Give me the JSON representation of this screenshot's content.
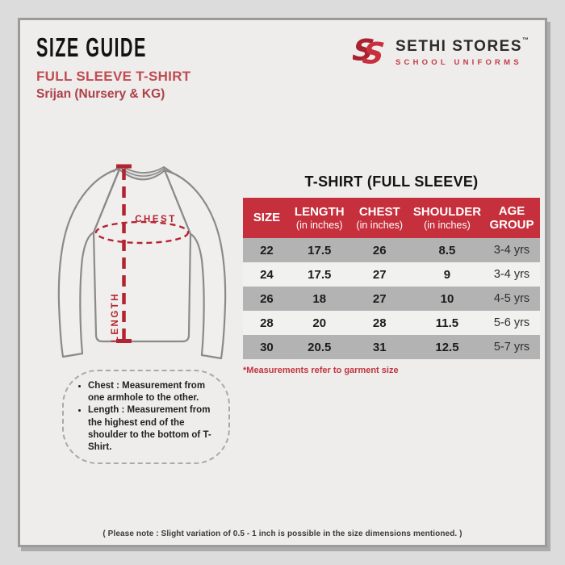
{
  "header": {
    "title": "SIZE GUIDE",
    "subtitle": "FULL SLEEVE T-SHIRT",
    "variant": "Srijan (Nursery & KG)"
  },
  "brand": {
    "name": "SETHI STORES",
    "trademark": "™",
    "tagline": "SCHOOL UNIFORMS",
    "logo_icon": "double-s-monogram"
  },
  "diagram": {
    "chest_label": "CHEST",
    "length_label": "LENGTH"
  },
  "size_table": {
    "title": "T-SHIRT (FULL SLEEVE)",
    "columns": [
      {
        "label": "SIZE",
        "sub": ""
      },
      {
        "label": "LENGTH",
        "sub": "(in inches)"
      },
      {
        "label": "CHEST",
        "sub": "(in inches)"
      },
      {
        "label": "SHOULDER",
        "sub": "(in inches)"
      },
      {
        "label": "AGE GROUP",
        "sub": ""
      }
    ],
    "rows": [
      [
        "22",
        "17.5",
        "26",
        "8.5",
        "3-4 yrs"
      ],
      [
        "24",
        "17.5",
        "27",
        "9",
        "3-4 yrs"
      ],
      [
        "26",
        "18",
        "27",
        "10",
        "4-5 yrs"
      ],
      [
        "28",
        "20",
        "28",
        "11.5",
        "5-6 yrs"
      ],
      [
        "30",
        "20.5",
        "31",
        "12.5",
        "5-7 yrs"
      ]
    ],
    "footnote": "*Measurements refer to garment size"
  },
  "notes": {
    "items": [
      "Chest : Measurement from one armhole to the other.",
      "Length : Measurement from the highest end of the shoulder to the bottom of T- Shirt."
    ]
  },
  "footer": {
    "note": "( Please note : Slight variation of 0.5 - 1 inch is possible in the size dimensions mentioned. )"
  },
  "colors": {
    "table_header_red": "#c62f3c",
    "brand_red": "#c8303e",
    "measure_red": "#b32431",
    "row_gray": "#b3b3b3",
    "row_light": "#f1f1f0"
  }
}
